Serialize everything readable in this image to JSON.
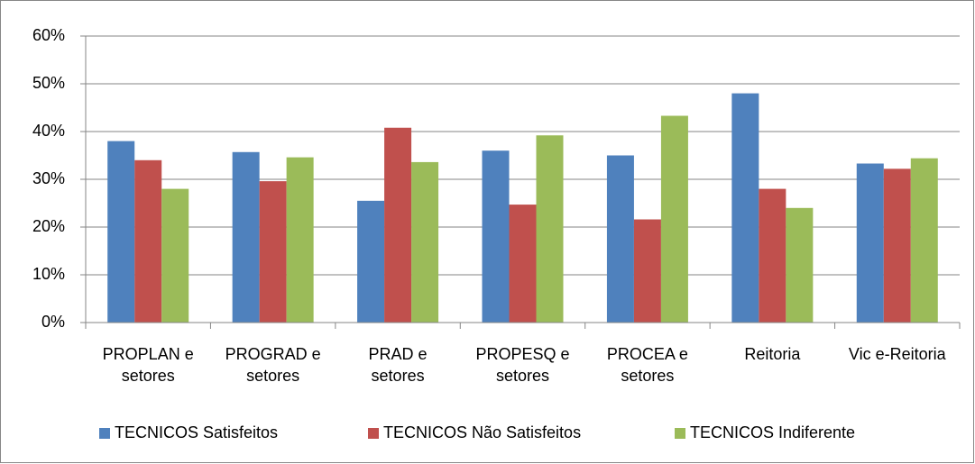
{
  "chart_data": {
    "type": "bar",
    "categories": [
      "PROPLAN e setores",
      "PROGRAD e setores",
      "PRAD e setores",
      "PROPESQ e setores",
      "PROCEA e setores",
      "Reitoria",
      "Vic e-Reitoria"
    ],
    "series": [
      {
        "name": "TECNICOS Satisfeitos",
        "color": "#4f81bd",
        "values": [
          38,
          35.7,
          25.5,
          36,
          35,
          48,
          33.3
        ]
      },
      {
        "name": "TECNICOS Não Satisfeitos",
        "color": "#c0504d",
        "values": [
          34,
          29.6,
          40.8,
          24.7,
          21.6,
          28,
          32.2
        ]
      },
      {
        "name": "TECNICOS Indiferente",
        "color": "#9bbb59",
        "values": [
          28,
          34.6,
          33.6,
          39.2,
          43.3,
          24,
          34.4
        ]
      }
    ],
    "ylim": [
      0,
      60
    ],
    "yticks": [
      {
        "value": 0,
        "label": "0%"
      },
      {
        "value": 10,
        "label": "10%"
      },
      {
        "value": 20,
        "label": "20%"
      },
      {
        "value": 30,
        "label": "30%"
      },
      {
        "value": 40,
        "label": "40%"
      },
      {
        "value": 50,
        "label": "50%"
      },
      {
        "value": 60,
        "label": "60%"
      }
    ],
    "grid": true,
    "legend": "bottom"
  }
}
